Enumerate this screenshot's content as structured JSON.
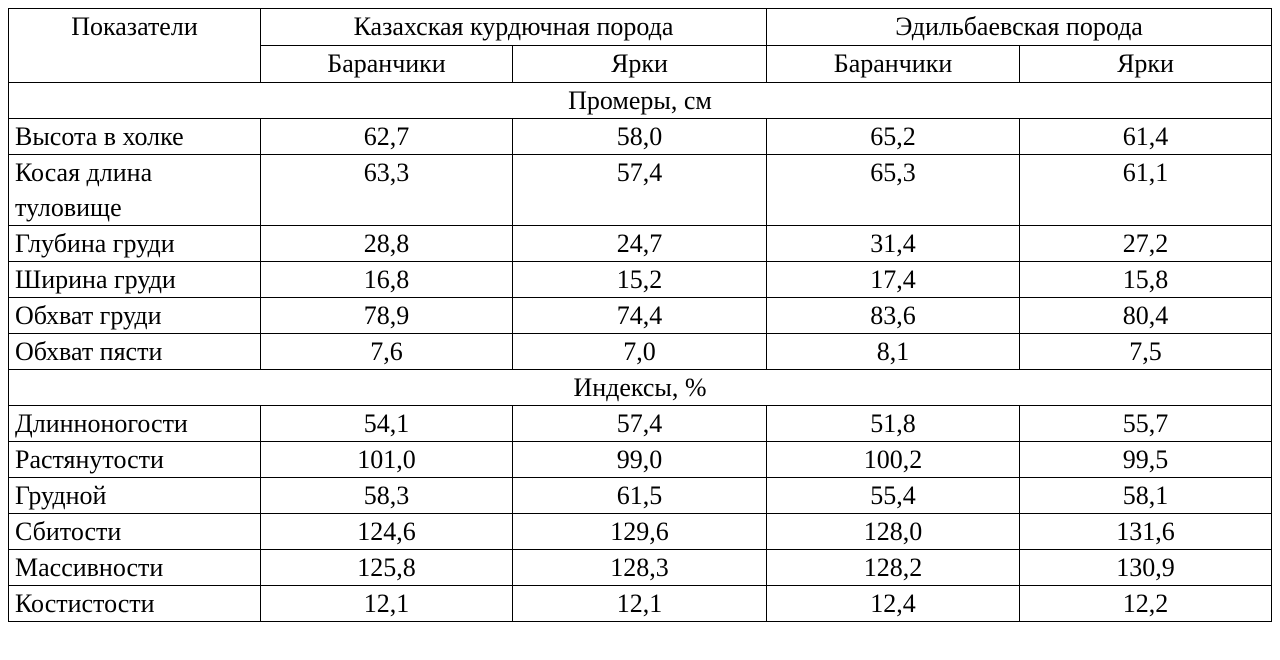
{
  "header": {
    "indicators": "Показатели",
    "breed1": "Казахская курдючная порода",
    "breed2": "Эдильбаевская порода",
    "sub": [
      "Баранчики",
      "Ярки",
      "Баранчики",
      "Ярки"
    ]
  },
  "sections": [
    {
      "title": "Промеры, см",
      "rows": [
        {
          "label": "Высота в холке",
          "values": [
            "62,7",
            "58,0",
            "65,2",
            "61,4"
          ]
        },
        {
          "label": "Косая длина туловище",
          "values": [
            "63,3",
            "57,4",
            "65,3",
            "61,1"
          ]
        },
        {
          "label": "Глубина груди",
          "values": [
            "28,8",
            "24,7",
            "31,4",
            "27,2"
          ]
        },
        {
          "label": "Ширина груди",
          "values": [
            "16,8",
            "15,2",
            "17,4",
            "15,8"
          ]
        },
        {
          "label": "Обхват груди",
          "values": [
            "78,9",
            "74,4",
            "83,6",
            "80,4"
          ]
        },
        {
          "label": "Обхват пясти",
          "values": [
            "7,6",
            "7,0",
            "8,1",
            "7,5"
          ]
        }
      ]
    },
    {
      "title": "Индексы, %",
      "rows": [
        {
          "label": "Длинноногости",
          "values": [
            "54,1",
            "57,4",
            "51,8",
            "55,7"
          ]
        },
        {
          "label": "Растянутости",
          "values": [
            "101,0",
            "99,0",
            "100,2",
            "99,5"
          ]
        },
        {
          "label": "Грудной",
          "values": [
            "58,3",
            "61,5",
            "55,4",
            "58,1"
          ]
        },
        {
          "label": "Сбитости",
          "values": [
            "124,6",
            "129,6",
            "128,0",
            "131,6"
          ]
        },
        {
          "label": "Массивности",
          "values": [
            "125,8",
            "128,3",
            "128,2",
            "130,9"
          ]
        },
        {
          "label": "Костистости",
          "values": [
            "12,1",
            "12,1",
            "12,4",
            "12,2"
          ]
        }
      ]
    }
  ]
}
